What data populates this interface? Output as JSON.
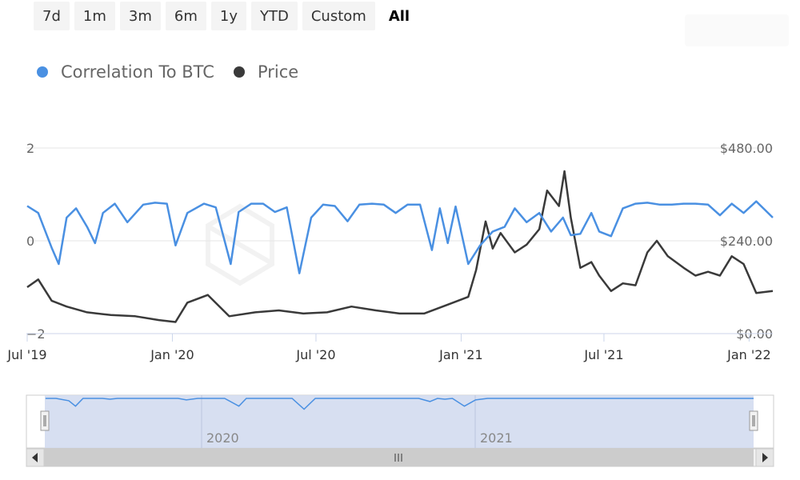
{
  "range_selector": {
    "buttons": [
      {
        "label": "7d",
        "active": false
      },
      {
        "label": "1m",
        "active": false
      },
      {
        "label": "3m",
        "active": false
      },
      {
        "label": "6m",
        "active": false
      },
      {
        "label": "1y",
        "active": false
      },
      {
        "label": "YTD",
        "active": false
      },
      {
        "label": "Custom",
        "active": false
      },
      {
        "label": "All",
        "active": true
      }
    ]
  },
  "colors": {
    "correlation": "#4a90e2",
    "price": "#3a3a3a",
    "navigator_fill": "#d3dcef",
    "grid": "#e6e6e6"
  },
  "navigator": {
    "year_labels": [
      "2020",
      "2021"
    ],
    "scroll_icon": "grip-lines-icon"
  },
  "chart_data": {
    "type": "line",
    "title": "",
    "x_range": [
      "2019-06-30",
      "2022-01-31"
    ],
    "x_tick_labels": [
      "Jul '19",
      "Jan '20",
      "Jul '20",
      "Jan '21",
      "Jul '21",
      "Jan '22"
    ],
    "left_axis": {
      "ylim": [
        -2,
        2
      ],
      "tick_labels": [
        "2",
        "0",
        "−2"
      ]
    },
    "right_axis": {
      "ylim": [
        0,
        480
      ],
      "tick_labels": [
        "$480.00",
        "$240.00",
        "$0.00"
      ]
    },
    "legend": {
      "placement": "top-left"
    },
    "series": [
      {
        "name": "Correlation To BTC",
        "axis": "left",
        "x": [
          "2019-07-01",
          "2019-07-15",
          "2019-08-01",
          "2019-08-10",
          "2019-08-20",
          "2019-09-01",
          "2019-09-15",
          "2019-09-25",
          "2019-10-05",
          "2019-10-20",
          "2019-11-05",
          "2019-11-25",
          "2019-12-10",
          "2019-12-25",
          "2020-01-05",
          "2020-01-20",
          "2020-02-10",
          "2020-02-25",
          "2020-03-15",
          "2020-03-25",
          "2020-04-10",
          "2020-04-25",
          "2020-05-10",
          "2020-05-25",
          "2020-06-10",
          "2020-06-25",
          "2020-07-10",
          "2020-07-25",
          "2020-08-10",
          "2020-08-25",
          "2020-09-10",
          "2020-09-25",
          "2020-10-10",
          "2020-10-25",
          "2020-11-10",
          "2020-11-25",
          "2020-12-05",
          "2020-12-15",
          "2020-12-25",
          "2021-01-10",
          "2021-01-25",
          "2021-02-10",
          "2021-02-25",
          "2021-03-10",
          "2021-03-25",
          "2021-04-10",
          "2021-04-25",
          "2021-05-10",
          "2021-05-20",
          "2021-06-01",
          "2021-06-15",
          "2021-06-25",
          "2021-07-10",
          "2021-07-25",
          "2021-08-10",
          "2021-08-25",
          "2021-09-10",
          "2021-09-25",
          "2021-10-10",
          "2021-10-25",
          "2021-11-10",
          "2021-11-25",
          "2021-12-10",
          "2021-12-25",
          "2022-01-10",
          "2022-01-31"
        ],
        "y": [
          0.75,
          0.6,
          -0.15,
          -0.5,
          0.5,
          0.7,
          0.3,
          -0.05,
          0.6,
          0.8,
          0.4,
          0.78,
          0.82,
          0.8,
          -0.1,
          0.6,
          0.8,
          0.72,
          -0.5,
          0.62,
          0.8,
          0.8,
          0.62,
          0.72,
          -0.7,
          0.5,
          0.78,
          0.75,
          0.42,
          0.78,
          0.8,
          0.78,
          0.6,
          0.78,
          0.78,
          -0.2,
          0.7,
          -0.05,
          0.74,
          -0.5,
          -0.1,
          0.2,
          0.3,
          0.7,
          0.4,
          0.6,
          0.2,
          0.5,
          0.12,
          0.15,
          0.6,
          0.2,
          0.1,
          0.7,
          0.8,
          0.82,
          0.78,
          0.78,
          0.8,
          0.8,
          0.78,
          0.55,
          0.8,
          0.6,
          0.85,
          0.5
        ]
      },
      {
        "name": "Price",
        "axis": "right",
        "x": [
          "2019-07-01",
          "2019-07-15",
          "2019-08-01",
          "2019-08-20",
          "2019-09-15",
          "2019-10-15",
          "2019-11-15",
          "2019-12-15",
          "2020-01-05",
          "2020-01-20",
          "2020-02-15",
          "2020-03-13",
          "2020-04-15",
          "2020-05-15",
          "2020-06-15",
          "2020-07-15",
          "2020-08-15",
          "2020-09-15",
          "2020-10-15",
          "2020-11-15",
          "2020-12-15",
          "2021-01-10",
          "2021-01-20",
          "2021-02-01",
          "2021-02-10",
          "2021-02-20",
          "2021-03-10",
          "2021-03-25",
          "2021-04-10",
          "2021-04-20",
          "2021-05-05",
          "2021-05-12",
          "2021-05-20",
          "2021-06-01",
          "2021-06-15",
          "2021-06-25",
          "2021-07-10",
          "2021-07-25",
          "2021-08-10",
          "2021-08-25",
          "2021-09-06",
          "2021-09-20",
          "2021-10-10",
          "2021-10-25",
          "2021-11-10",
          "2021-11-25",
          "2021-12-10",
          "2021-12-25",
          "2022-01-10",
          "2022-01-31"
        ],
        "y": [
          120,
          140,
          85,
          70,
          55,
          48,
          45,
          35,
          30,
          80,
          100,
          45,
          55,
          60,
          52,
          55,
          70,
          60,
          52,
          52,
          75,
          95,
          165,
          290,
          220,
          260,
          210,
          230,
          270,
          370,
          330,
          420,
          300,
          170,
          185,
          150,
          110,
          130,
          125,
          210,
          240,
          200,
          170,
          150,
          160,
          150,
          200,
          180,
          105,
          110
        ]
      }
    ]
  }
}
